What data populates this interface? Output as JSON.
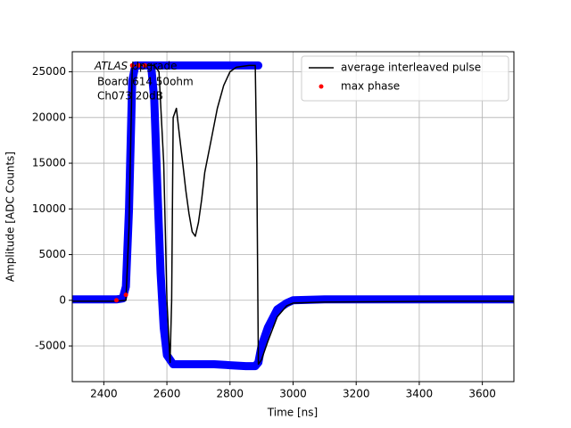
{
  "chart_data": {
    "type": "line",
    "xlabel": "Time [ns]",
    "ylabel": "Amplitude [ADC Counts]",
    "annotation": {
      "experiment": "ATLAS",
      "status": "Upgrade",
      "lines": [
        "Board 614 50ohm",
        "Ch073 20dB"
      ]
    },
    "xlim": [
      2300,
      3700
    ],
    "xticks": [
      2400,
      2600,
      2800,
      3000,
      3200,
      3400,
      3600
    ],
    "ylim": [
      -8900,
      27200
    ],
    "yticks": [
      -5000,
      0,
      5000,
      10000,
      15000,
      20000,
      25000
    ],
    "grid": true,
    "legend": "upper right",
    "series": [
      {
        "type": "band",
        "color": "#0000ff",
        "x": [
          2300,
          2440,
          2460,
          2470,
          2480,
          2490,
          2500,
          2530,
          2550,
          2560,
          2570,
          2580,
          2590,
          2600,
          2620,
          2650,
          2700,
          2750,
          2800,
          2850,
          2880,
          2890,
          2900,
          2920,
          2950,
          2980,
          3000,
          3100,
          3300,
          3500,
          3700,
          null,
          2540,
          2890
        ],
        "values": [
          100,
          100,
          200,
          1500,
          10000,
          24000,
          25700,
          25700,
          25700,
          22000,
          12000,
          3000,
          -3000,
          -6000,
          -7000,
          -7000,
          -7000,
          -7000,
          -7100,
          -7200,
          -7200,
          -6800,
          -5000,
          -3000,
          -1000,
          -300,
          0,
          100,
          100,
          100,
          100,
          null,
          25700,
          25700
        ]
      },
      {
        "type": "line",
        "name": "average interleaved pulse",
        "color": "#000000",
        "x": [
          2300,
          2440,
          2470,
          2480,
          2490,
          2500,
          2560,
          2575,
          2590,
          2600,
          2610,
          2615,
          2620,
          2630,
          2640,
          2650,
          2660,
          2670,
          2680,
          2690,
          2700,
          2710,
          2720,
          2740,
          2760,
          2780,
          2800,
          2820,
          2860,
          2880,
          2885,
          2890,
          2900,
          2920,
          2950,
          2980,
          3000,
          3100,
          3300,
          3500,
          3700
        ],
        "values": [
          -100,
          -100,
          0,
          8000,
          25500,
          25700,
          25700,
          25000,
          15000,
          0,
          -6800,
          0,
          20000,
          21000,
          18000,
          15000,
          12000,
          9500,
          7500,
          7000,
          8500,
          11000,
          14000,
          17500,
          21000,
          23500,
          25000,
          25500,
          25700,
          25700,
          15000,
          -7000,
          -6500,
          -4500,
          -1800,
          -600,
          -300,
          -200,
          -150,
          -100,
          -100
        ]
      },
      {
        "type": "scatter",
        "name": "max phase",
        "color": "#ff0000",
        "x": [
          2440,
          2470,
          2490,
          2510,
          2530
        ],
        "values": [
          0,
          600,
          25700,
          25700,
          25700
        ]
      }
    ]
  }
}
